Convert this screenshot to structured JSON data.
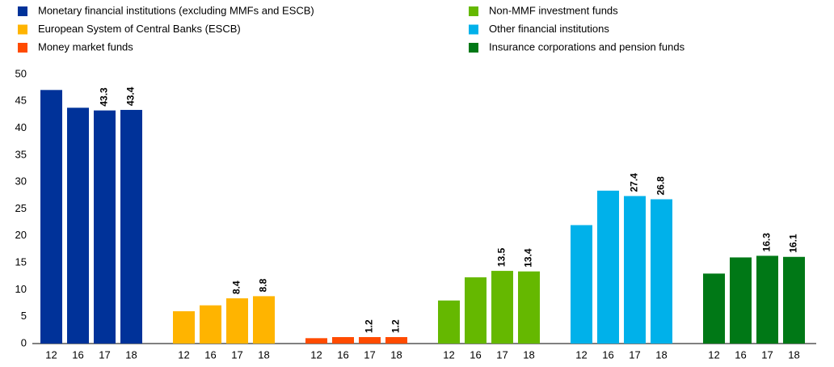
{
  "chart_data": {
    "type": "bar",
    "categories": [
      "12",
      "16",
      "17",
      "18"
    ],
    "series": [
      {
        "name": "Monetary financial institutions (excluding MMFs and ESCB)",
        "color": "#003299",
        "values": [
          47.1,
          43.8,
          43.3,
          43.4
        ],
        "value_labels": [
          null,
          null,
          "43.3",
          "43.4"
        ]
      },
      {
        "name": "European System of Central Banks (ESCB)",
        "color": "#ffb400",
        "values": [
          6.0,
          7.1,
          8.4,
          8.8
        ],
        "value_labels": [
          null,
          null,
          "8.4",
          "8.8"
        ]
      },
      {
        "name": "Money market funds",
        "color": "#ff4b00",
        "values": [
          1.0,
          1.2,
          1.2,
          1.2
        ],
        "value_labels": [
          null,
          null,
          "1.2",
          "1.2"
        ]
      },
      {
        "name": "Non-MMF investment funds",
        "color": "#65b800",
        "values": [
          8.0,
          12.3,
          13.5,
          13.4
        ],
        "value_labels": [
          null,
          null,
          "13.5",
          "13.4"
        ]
      },
      {
        "name": "Other financial institutions",
        "color": "#00b1ea",
        "values": [
          22.0,
          28.4,
          27.4,
          26.8
        ],
        "value_labels": [
          null,
          null,
          "27.4",
          "26.8"
        ]
      },
      {
        "name": "Insurance corporations and pension funds",
        "color": "#007816",
        "values": [
          13.0,
          16.0,
          16.3,
          16.1
        ],
        "value_labels": [
          null,
          null,
          "16.3",
          "16.1"
        ]
      }
    ],
    "ylim": [
      0,
      50
    ],
    "yticks": [
      0,
      5,
      10,
      15,
      20,
      25,
      30,
      35,
      40,
      45,
      50
    ],
    "grid": false
  }
}
